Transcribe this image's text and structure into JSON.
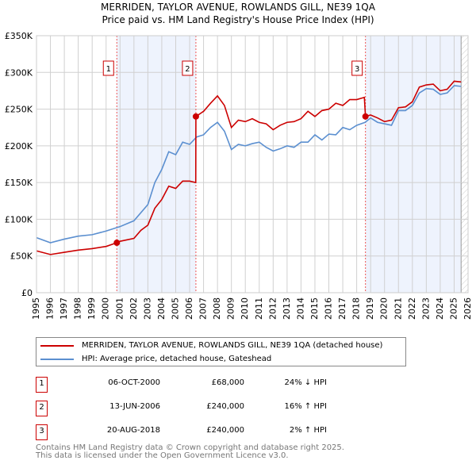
{
  "chart_data": {
    "type": "line",
    "title": "MERRIDEN, TAYLOR AVENUE, ROWLANDS GILL, NE39 1QA",
    "subtitle": "Price paid vs. HM Land Registry's House Price Index (HPI)",
    "xlim": [
      1995,
      2026
    ],
    "ylim": [
      0,
      350000
    ],
    "x_ticks": [
      "1995",
      "1996",
      "1997",
      "1998",
      "1999",
      "2000",
      "2001",
      "2002",
      "2003",
      "2004",
      "2005",
      "2006",
      "2007",
      "2008",
      "2009",
      "2010",
      "2011",
      "2012",
      "2013",
      "2014",
      "2015",
      "2016",
      "2017",
      "2018",
      "2019",
      "2020",
      "2021",
      "2022",
      "2023",
      "2024",
      "2025",
      "2026"
    ],
    "y_ticks": [
      {
        "v": 0,
        "label": "£0"
      },
      {
        "v": 50000,
        "label": "£50K"
      },
      {
        "v": 100000,
        "label": "£100K"
      },
      {
        "v": 150000,
        "label": "£150K"
      },
      {
        "v": 200000,
        "label": "£200K"
      },
      {
        "v": 250000,
        "label": "£250K"
      },
      {
        "v": 300000,
        "label": "£300K"
      },
      {
        "v": 350000,
        "label": "£350K"
      }
    ],
    "grid": true,
    "series": [
      {
        "name": "MERRIDEN, TAYLOR AVENUE, ROWLANDS GILL, NE39 1QA (detached house)",
        "color": "#cc0000",
        "x": [
          1995,
          1996,
          1997,
          1998,
          1999,
          2000,
          2000.77,
          2001,
          2002,
          2002.5,
          2003,
          2003.5,
          2004,
          2004.5,
          2005,
          2005.5,
          2006,
          2006.44,
          2006.45,
          2007,
          2007.5,
          2008,
          2008.5,
          2009,
          2009.5,
          2010,
          2010.5,
          2011,
          2011.5,
          2012,
          2012.5,
          2013,
          2013.5,
          2014,
          2014.5,
          2015,
          2015.5,
          2016,
          2016.5,
          2017,
          2017.5,
          2018,
          2018.55,
          2018.63,
          2019,
          2019.5,
          2020,
          2020.5,
          2021,
          2021.5,
          2022,
          2022.5,
          2023,
          2023.5,
          2024,
          2024.5,
          2025,
          2025.5
        ],
        "y": [
          57000,
          52000,
          55000,
          58000,
          60000,
          63000,
          68000,
          70000,
          74000,
          85000,
          92000,
          115000,
          127000,
          145000,
          142000,
          152000,
          152000,
          150000,
          240000,
          247000,
          258000,
          268000,
          255000,
          225000,
          235000,
          233000,
          237000,
          232000,
          230000,
          222000,
          228000,
          232000,
          233000,
          237000,
          247000,
          240000,
          248000,
          250000,
          258000,
          255000,
          263000,
          263000,
          266000,
          240000,
          242000,
          238000,
          233000,
          235000,
          252000,
          253000,
          260000,
          280000,
          283000,
          284000,
          275000,
          277000,
          288000,
          287000
        ]
      },
      {
        "name": "HPI: Average price, detached house, Gateshead",
        "color": "#5b8fd0",
        "x": [
          1995,
          1996,
          1997,
          1998,
          1999,
          2000,
          2001,
          2002,
          2003,
          2003.5,
          2004,
          2004.5,
          2005,
          2005.5,
          2006,
          2006.5,
          2007,
          2007.5,
          2008,
          2008.5,
          2009,
          2009.5,
          2010,
          2010.5,
          2011,
          2011.5,
          2012,
          2012.5,
          2013,
          2013.5,
          2014,
          2014.5,
          2015,
          2015.5,
          2016,
          2016.5,
          2017,
          2017.5,
          2018,
          2018.6,
          2019,
          2019.5,
          2020,
          2020.5,
          2021,
          2021.5,
          2022,
          2022.5,
          2023,
          2023.5,
          2024,
          2024.5,
          2025,
          2025.5
        ],
        "y": [
          75000,
          68000,
          73000,
          77000,
          79000,
          84000,
          90000,
          98000,
          120000,
          150000,
          168000,
          192000,
          188000,
          205000,
          202000,
          212000,
          215000,
          225000,
          232000,
          220000,
          195000,
          202000,
          200000,
          203000,
          205000,
          198000,
          193000,
          196000,
          200000,
          198000,
          205000,
          205000,
          215000,
          208000,
          216000,
          215000,
          225000,
          222000,
          228000,
          232000,
          238000,
          232000,
          230000,
          228000,
          248000,
          248000,
          255000,
          272000,
          278000,
          277000,
          270000,
          272000,
          282000,
          281000
        ]
      }
    ],
    "sales": [
      {
        "n": "1",
        "x": 2000.77,
        "y": 68000,
        "date": "06-OCT-2000",
        "price": "£68,000",
        "hpi": "24% ↓ HPI"
      },
      {
        "n": "2",
        "x": 2006.45,
        "y": 240000,
        "date": "13-JUN-2006",
        "price": "£240,000",
        "hpi": "16% ↑ HPI"
      },
      {
        "n": "3",
        "x": 2018.63,
        "y": 240000,
        "date": "20-AUG-2018",
        "price": "£240,000",
        "hpi": "2% ↑ HPI"
      }
    ],
    "shaded_ranges": [
      [
        2000.77,
        2006.45
      ],
      [
        2018.63,
        2025.5
      ]
    ],
    "hatched_from": 2025.5,
    "legend_placement": "below"
  },
  "footer": {
    "line1": "Contains HM Land Registry data © Crown copyright and database right 2025.",
    "line2": "This data is licensed under the Open Government Licence v3.0."
  }
}
